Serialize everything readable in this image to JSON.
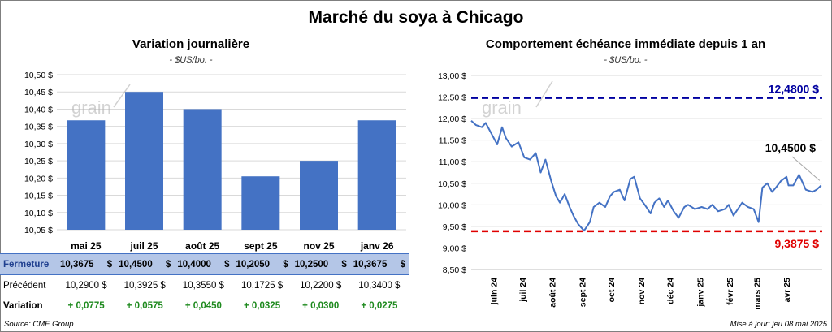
{
  "title": "Marché du soya à Chicago",
  "left": {
    "subtitle": "Variation journalière",
    "unit": "- $US/bo. -",
    "watermark": "grain",
    "chart_data": {
      "type": "bar",
      "categories": [
        "mai 25",
        "juil 25",
        "août 25",
        "sept 25",
        "nov 25",
        "janv 26"
      ],
      "values": [
        10.3675,
        10.45,
        10.4,
        10.205,
        10.25,
        10.3675
      ],
      "ylim": [
        10.05,
        10.5
      ],
      "yticks": [
        "10,05 $",
        "10,10 $",
        "10,15 $",
        "10,20 $",
        "10,25 $",
        "10,30 $",
        "10,35 $",
        "10,40 $",
        "10,45 $",
        "10,50 $"
      ],
      "bar_color": "#4472c4",
      "grid": true
    },
    "table": {
      "rows": [
        {
          "label": "Fermeture",
          "values": [
            "10,3675",
            "10,4500",
            "10,4000",
            "10,2050",
            "10,2500",
            "10,3675"
          ],
          "unit": "$"
        },
        {
          "label": "Précédent",
          "values": [
            "10,2900 $",
            "10,3925 $",
            "10,3550 $",
            "10,1725 $",
            "10,2200 $",
            "10,3400 $"
          ]
        },
        {
          "label": "Variation",
          "values": [
            "+ 0,0775",
            "+ 0,0575",
            "+ 0,0450",
            "+ 0,0325",
            "+ 0,0300",
            "+ 0,0275"
          ]
        }
      ]
    },
    "source": "Source: CME Group"
  },
  "right": {
    "subtitle": "Comportement  échéance immédiate depuis 1 an",
    "unit": "- $US/bo. -",
    "watermark": "grain",
    "chart_data": {
      "type": "line",
      "ylim": [
        8.5,
        13.0
      ],
      "yticks": [
        "8,50 $",
        "9,00 $",
        "9,50 $",
        "10,00 $",
        "10,50 $",
        "11,00 $",
        "11,50 $",
        "12,00 $",
        "12,50 $",
        "13,00 $"
      ],
      "xticks": [
        "juin 24",
        "juil 24",
        "août 24",
        "sept 24",
        "oct 24",
        "nov 24",
        "déc 24",
        "janv 25",
        "févr 25",
        "mars 25",
        "avr 25"
      ],
      "series": [
        {
          "color": "#4472c4",
          "x": [
            "2024-05-09",
            "2024-05-14",
            "2024-05-20",
            "2024-05-24",
            "2024-05-30",
            "2024-06-05",
            "2024-06-10",
            "2024-06-14",
            "2024-06-20",
            "2024-06-27",
            "2024-07-03",
            "2024-07-09",
            "2024-07-15",
            "2024-07-20",
            "2024-07-25",
            "2024-07-31",
            "2024-08-05",
            "2024-08-09",
            "2024-08-14",
            "2024-08-19",
            "2024-08-23",
            "2024-08-28",
            "2024-09-03",
            "2024-09-09",
            "2024-09-13",
            "2024-09-19",
            "2024-09-25",
            "2024-09-30",
            "2024-10-04",
            "2024-10-10",
            "2024-10-15",
            "2024-10-21",
            "2024-10-25",
            "2024-10-31",
            "2024-11-05",
            "2024-11-08",
            "2024-11-11",
            "2024-11-15",
            "2024-11-20",
            "2024-11-25",
            "2024-11-29",
            "2024-12-05",
            "2024-12-10",
            "2024-12-16",
            "2024-12-20",
            "2024-12-27",
            "2025-01-03",
            "2025-01-09",
            "2025-01-14",
            "2025-01-20",
            "2025-01-27",
            "2025-01-31",
            "2025-02-05",
            "2025-02-11",
            "2025-02-14",
            "2025-02-20",
            "2025-02-26",
            "2025-03-03",
            "2025-03-07",
            "2025-03-12",
            "2025-03-17",
            "2025-03-21",
            "2025-03-26",
            "2025-04-01",
            "2025-04-03",
            "2025-04-08",
            "2025-04-14",
            "2025-04-21",
            "2025-04-28",
            "2025-05-02",
            "2025-05-07"
          ],
          "values": [
            11.95,
            11.85,
            11.8,
            11.9,
            11.65,
            11.4,
            11.8,
            11.55,
            11.35,
            11.45,
            11.1,
            11.05,
            11.2,
            10.75,
            11.05,
            10.55,
            10.2,
            10.05,
            10.25,
            9.95,
            9.75,
            9.55,
            9.4,
            9.6,
            9.95,
            10.05,
            9.95,
            10.2,
            10.3,
            10.35,
            10.1,
            10.6,
            10.65,
            10.15,
            10.0,
            9.9,
            9.8,
            10.05,
            10.15,
            9.95,
            10.1,
            9.85,
            9.7,
            9.95,
            10.0,
            9.9,
            9.95,
            9.9,
            10.0,
            9.85,
            9.9,
            10.0,
            9.75,
            9.95,
            10.05,
            9.95,
            9.9,
            9.6,
            10.4,
            10.5,
            10.3,
            10.4,
            10.55,
            10.65,
            10.45,
            10.45,
            10.7,
            10.35,
            10.3,
            10.35,
            10.45
          ]
        }
      ],
      "high": {
        "value": 12.48,
        "label": "12,4800 $",
        "color": "#0000a0"
      },
      "low": {
        "value": 9.3875,
        "label": "9,3875 $",
        "color": "#e00000"
      },
      "last_label": "10,4500 $",
      "grid": true
    },
    "update": "Mise à jour: jeu 08 mai 2025"
  }
}
